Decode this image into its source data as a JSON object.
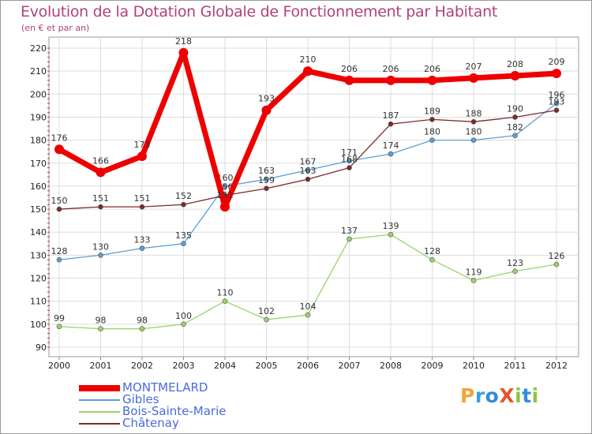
{
  "header": {
    "title": "Evolution de la Dotation Globale de Fonctionnement par Habitant",
    "subtitle": "(en € et par an)"
  },
  "logo": {
    "text": "ProXiti",
    "letters": [
      "P",
      "r",
      "o",
      "X",
      "i",
      "t",
      "i"
    ]
  },
  "chart_data": {
    "type": "line",
    "title": "Evolution de la Dotation Globale de Fonctionnement par Habitant",
    "subtitle": "(en € et par an)",
    "xlabel": "",
    "ylabel": "",
    "ylim": [
      90,
      220
    ],
    "yticks": [
      90,
      100,
      110,
      120,
      130,
      140,
      150,
      160,
      170,
      180,
      190,
      200,
      210,
      220
    ],
    "grid": true,
    "legend_position": "bottom-left",
    "categories": [
      "2000",
      "2001",
      "2002",
      "2003",
      "2004",
      "2005",
      "2006",
      "2007",
      "2008",
      "2009",
      "2010",
      "2011",
      "2012"
    ],
    "series": [
      {
        "name": "MONTMELARD",
        "color": "#ee0000",
        "values": [
          176,
          166,
          173,
          218,
          151,
          193,
          210,
          206,
          206,
          206,
          207,
          208,
          209
        ]
      },
      {
        "name": "Gibles",
        "color": "#5a9fd4",
        "values": [
          128,
          130,
          133,
          135,
          160,
          163,
          167,
          171,
          174,
          180,
          180,
          182,
          196
        ]
      },
      {
        "name": "Bois-Sainte-Marie",
        "color": "#99d36b",
        "values": [
          99,
          98,
          98,
          100,
          110,
          102,
          104,
          137,
          139,
          128,
          119,
          123,
          126
        ]
      },
      {
        "name": "Châtenay",
        "color": "#7a2b2b",
        "values": [
          150,
          151,
          151,
          152,
          156,
          159,
          163,
          168,
          187,
          189,
          188,
          190,
          193
        ]
      }
    ]
  }
}
